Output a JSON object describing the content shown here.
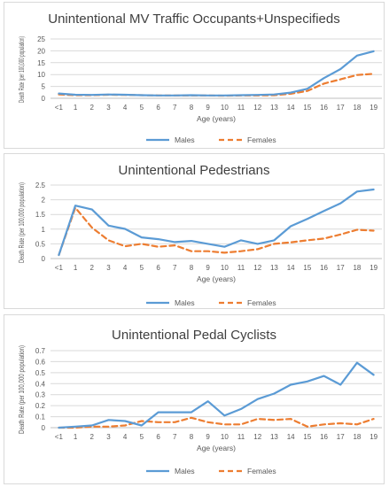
{
  "colors": {
    "males": "#5b9bd5",
    "females": "#ed7d31",
    "grid": "#d9d9d9",
    "text": "#595959"
  },
  "chart_data": [
    {
      "type": "line",
      "title": "Unintentional MV Traffic Occupants+Unspecifieds",
      "xlabel": "Age (years)",
      "ylabel": "Death Rate (per 100,000 population)",
      "categories": [
        "<1",
        "1",
        "2",
        "3",
        "4",
        "5",
        "6",
        "7",
        "8",
        "9",
        "10",
        "11",
        "12",
        "13",
        "14",
        "15",
        "16",
        "17",
        "18",
        "19"
      ],
      "yticks": [
        "0",
        "5",
        "10",
        "15",
        "20",
        "25"
      ],
      "ylim": [
        0,
        25
      ],
      "grid": true,
      "legend": "bottom",
      "series": [
        {
          "name": "Males",
          "style": "solid",
          "values": [
            2.0,
            1.5,
            1.4,
            1.6,
            1.5,
            1.3,
            1.2,
            1.2,
            1.3,
            1.2,
            1.2,
            1.3,
            1.4,
            1.6,
            2.4,
            4.0,
            8.5,
            12.3,
            18.0,
            19.8
          ]
        },
        {
          "name": "Females",
          "style": "dashed",
          "values": [
            1.6,
            1.3,
            1.3,
            1.5,
            1.4,
            1.3,
            1.2,
            1.2,
            1.2,
            1.2,
            1.1,
            1.2,
            1.2,
            1.3,
            1.9,
            3.1,
            6.2,
            8.0,
            9.8,
            10.3
          ]
        }
      ]
    },
    {
      "type": "line",
      "title": "Unintentional Pedestrians",
      "xlabel": "Age (years)",
      "ylabel": "Death Rate (per 100,000 population)",
      "categories": [
        "<1",
        "1",
        "2",
        "3",
        "4",
        "5",
        "6",
        "7",
        "8",
        "9",
        "10",
        "11",
        "12",
        "13",
        "14",
        "15",
        "16",
        "17",
        "18",
        "19"
      ],
      "yticks": [
        "0",
        "0.5",
        "1",
        "1.5",
        "2",
        "2.5"
      ],
      "ylim": [
        0,
        2.5
      ],
      "grid": true,
      "legend": "bottom",
      "series": [
        {
          "name": "Males",
          "style": "solid",
          "values": [
            0.12,
            1.8,
            1.67,
            1.12,
            1.01,
            0.72,
            0.66,
            0.56,
            0.6,
            0.5,
            0.4,
            0.62,
            0.5,
            0.62,
            1.1,
            1.35,
            1.62,
            1.88,
            2.28,
            2.35
          ]
        },
        {
          "name": "Females",
          "style": "dashed",
          "values": [
            0.12,
            1.73,
            1.05,
            0.62,
            0.42,
            0.5,
            0.4,
            0.45,
            0.25,
            0.25,
            0.2,
            0.25,
            0.32,
            0.5,
            0.55,
            0.62,
            0.68,
            0.82,
            0.98,
            0.95
          ]
        }
      ]
    },
    {
      "type": "line",
      "title": "Unintentional Pedal Cyclists",
      "xlabel": "Age (years)",
      "ylabel": "Death Rate (per 100,000 population)",
      "categories": [
        "<1",
        "1",
        "2",
        "3",
        "4",
        "5",
        "6",
        "7",
        "8",
        "9",
        "10",
        "11",
        "12",
        "13",
        "14",
        "15",
        "16",
        "17",
        "18",
        "19"
      ],
      "yticks": [
        "0",
        "0.1",
        "0.2",
        "0.3",
        "0.4",
        "0.5",
        "0.6",
        "0.7"
      ],
      "ylim": [
        0,
        0.7
      ],
      "grid": true,
      "legend": "bottom",
      "series": [
        {
          "name": "Males",
          "style": "solid",
          "values": [
            0.0,
            0.01,
            0.02,
            0.07,
            0.06,
            0.02,
            0.14,
            0.14,
            0.14,
            0.24,
            0.11,
            0.17,
            0.26,
            0.31,
            0.39,
            0.42,
            0.47,
            0.39,
            0.59,
            0.48
          ]
        },
        {
          "name": "Females",
          "style": "dashed",
          "values": [
            0.0,
            0.0,
            0.01,
            0.01,
            0.02,
            0.06,
            0.05,
            0.05,
            0.09,
            0.05,
            0.03,
            0.03,
            0.08,
            0.07,
            0.08,
            0.01,
            0.03,
            0.04,
            0.03,
            0.08
          ]
        }
      ]
    }
  ]
}
